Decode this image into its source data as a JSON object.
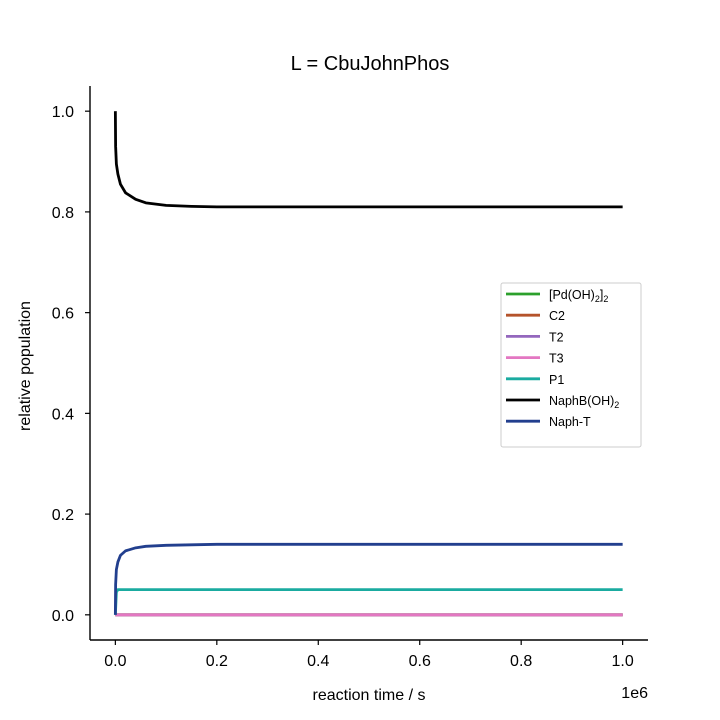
{
  "chart_data": {
    "type": "line",
    "title": "L = CbuJohnPhos",
    "xlabel": "reaction time / s",
    "ylabel": "relative population",
    "x_offset_label": "1e6",
    "xlim": [
      -0.05,
      1.05
    ],
    "ylim": [
      -0.05,
      1.05
    ],
    "x_ticks": [
      0.0,
      0.2,
      0.4,
      0.6,
      0.8,
      1.0
    ],
    "x_tick_labels": [
      "0.0",
      "0.2",
      "0.4",
      "0.6",
      "0.8",
      "1.0"
    ],
    "y_ticks": [
      0.0,
      0.2,
      0.4,
      0.6,
      0.8,
      1.0
    ],
    "y_tick_labels": [
      "0.0",
      "0.2",
      "0.4",
      "0.6",
      "0.8",
      "1.0"
    ],
    "grid": false,
    "legend_position": "center-right",
    "series": [
      {
        "name": "[Pd(OH)2]2",
        "label_parts": [
          {
            "t": "[Pd(OH)"
          },
          {
            "t": "2",
            "sub": true
          },
          {
            "t": "]"
          },
          {
            "t": "2",
            "sub": true
          }
        ],
        "color": "#2ca02c",
        "x": [
          0,
          1.0
        ],
        "y": [
          0.0,
          0.0
        ]
      },
      {
        "name": "C2",
        "label_parts": [
          {
            "t": "C2"
          }
        ],
        "color": "#b5532b",
        "x": [
          0,
          1.0
        ],
        "y": [
          0.0,
          0.0
        ]
      },
      {
        "name": "T2",
        "label_parts": [
          {
            "t": "T2"
          }
        ],
        "color": "#9467bd",
        "x": [
          0,
          1.0
        ],
        "y": [
          0.0,
          0.0
        ]
      },
      {
        "name": "T3",
        "label_parts": [
          {
            "t": "T3"
          }
        ],
        "color": "#e377c2",
        "x": [
          0,
          1.0
        ],
        "y": [
          0.0,
          0.0
        ]
      },
      {
        "name": "P1",
        "label_parts": [
          {
            "t": "P1"
          }
        ],
        "color": "#1aaba0",
        "x": [
          0,
          0.002,
          0.005,
          0.01,
          1.0
        ],
        "y": [
          0.0,
          0.045,
          0.05,
          0.05,
          0.05
        ]
      },
      {
        "name": "NaphB(OH)2",
        "label_parts": [
          {
            "t": "NaphB(OH)"
          },
          {
            "t": "2",
            "sub": true
          }
        ],
        "color": "#000000",
        "x": [
          0,
          0.0005,
          0.002,
          0.005,
          0.01,
          0.02,
          0.04,
          0.06,
          0.1,
          0.15,
          0.2,
          0.3,
          0.5,
          1.0
        ],
        "y": [
          1.0,
          0.93,
          0.895,
          0.875,
          0.855,
          0.838,
          0.825,
          0.818,
          0.813,
          0.811,
          0.81,
          0.81,
          0.81,
          0.81
        ]
      },
      {
        "name": "Naph-T",
        "label_parts": [
          {
            "t": "Naph-T"
          }
        ],
        "color": "#223f8e",
        "x": [
          0,
          0.0005,
          0.002,
          0.005,
          0.01,
          0.02,
          0.04,
          0.06,
          0.1,
          0.15,
          0.2,
          0.3,
          0.5,
          1.0
        ],
        "y": [
          0.0,
          0.06,
          0.09,
          0.105,
          0.118,
          0.127,
          0.133,
          0.136,
          0.138,
          0.139,
          0.14,
          0.14,
          0.14,
          0.14
        ]
      }
    ]
  }
}
